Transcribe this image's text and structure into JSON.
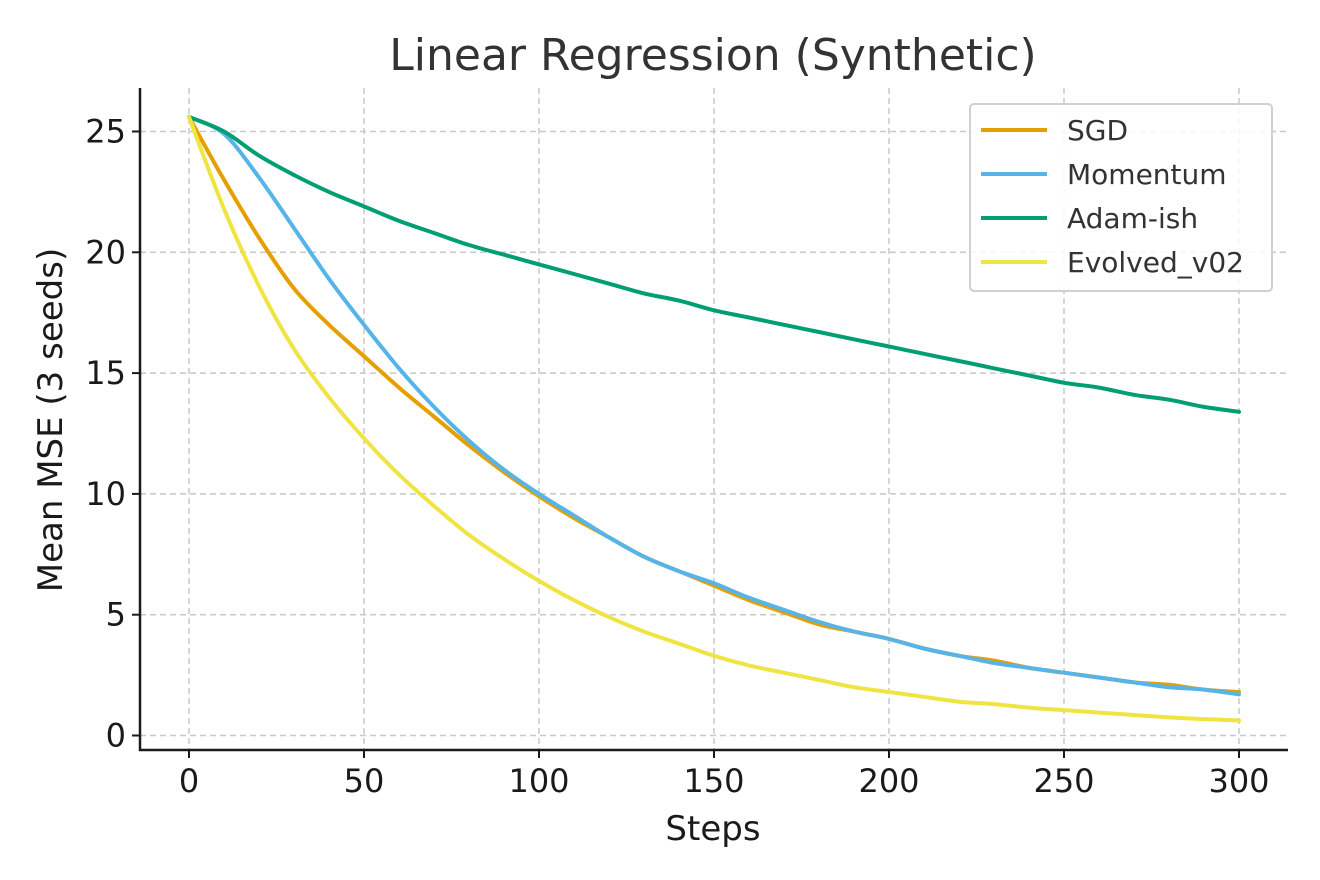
{
  "chart_data": {
    "type": "line",
    "title": "Linear Regression (Synthetic)",
    "xlabel": "Steps",
    "ylabel": "Mean MSE (3 seeds)",
    "xlim": [
      -14,
      314
    ],
    "ylim": [
      -0.6,
      26.8
    ],
    "xticks": [
      0,
      50,
      100,
      150,
      200,
      250,
      300
    ],
    "yticks": [
      0,
      5,
      10,
      15,
      20,
      25
    ],
    "grid": true,
    "legend_position": "top-right",
    "x": [
      0,
      10,
      20,
      30,
      40,
      50,
      60,
      70,
      80,
      90,
      100,
      110,
      120,
      130,
      140,
      150,
      160,
      170,
      180,
      190,
      200,
      210,
      220,
      230,
      240,
      250,
      260,
      270,
      280,
      290,
      300
    ],
    "series": [
      {
        "name": "SGD",
        "color": "#E69F00",
        "values": [
          25.6,
          23.0,
          20.6,
          18.5,
          17.0,
          15.7,
          14.4,
          13.2,
          12.0,
          10.9,
          9.9,
          9.0,
          8.2,
          7.4,
          6.8,
          6.2,
          5.6,
          5.1,
          4.6,
          4.3,
          4.0,
          3.6,
          3.3,
          3.1,
          2.8,
          2.6,
          2.4,
          2.2,
          2.1,
          1.9,
          1.8
        ]
      },
      {
        "name": "Momentum",
        "color": "#56B4E9",
        "values": [
          25.6,
          24.9,
          23.1,
          21.0,
          18.9,
          17.0,
          15.2,
          13.6,
          12.2,
          11.0,
          10.0,
          9.1,
          8.2,
          7.4,
          6.8,
          6.3,
          5.7,
          5.2,
          4.7,
          4.3,
          4.0,
          3.6,
          3.3,
          3.0,
          2.8,
          2.6,
          2.4,
          2.2,
          2.0,
          1.9,
          1.7
        ]
      },
      {
        "name": "Adam-ish",
        "color": "#009E73",
        "values": [
          25.6,
          25.0,
          24.0,
          23.2,
          22.5,
          21.9,
          21.3,
          20.8,
          20.3,
          19.9,
          19.5,
          19.1,
          18.7,
          18.3,
          18.0,
          17.6,
          17.3,
          17.0,
          16.7,
          16.4,
          16.1,
          15.8,
          15.5,
          15.2,
          14.9,
          14.6,
          14.4,
          14.1,
          13.9,
          13.6,
          13.4
        ]
      },
      {
        "name": "Evolved_v02",
        "color": "#F0E442",
        "values": [
          25.6,
          21.8,
          18.6,
          16.0,
          14.0,
          12.3,
          10.8,
          9.5,
          8.3,
          7.3,
          6.4,
          5.6,
          4.9,
          4.3,
          3.8,
          3.3,
          2.9,
          2.6,
          2.3,
          2.0,
          1.8,
          1.6,
          1.4,
          1.3,
          1.15,
          1.05,
          0.95,
          0.85,
          0.75,
          0.68,
          0.62
        ]
      }
    ]
  }
}
